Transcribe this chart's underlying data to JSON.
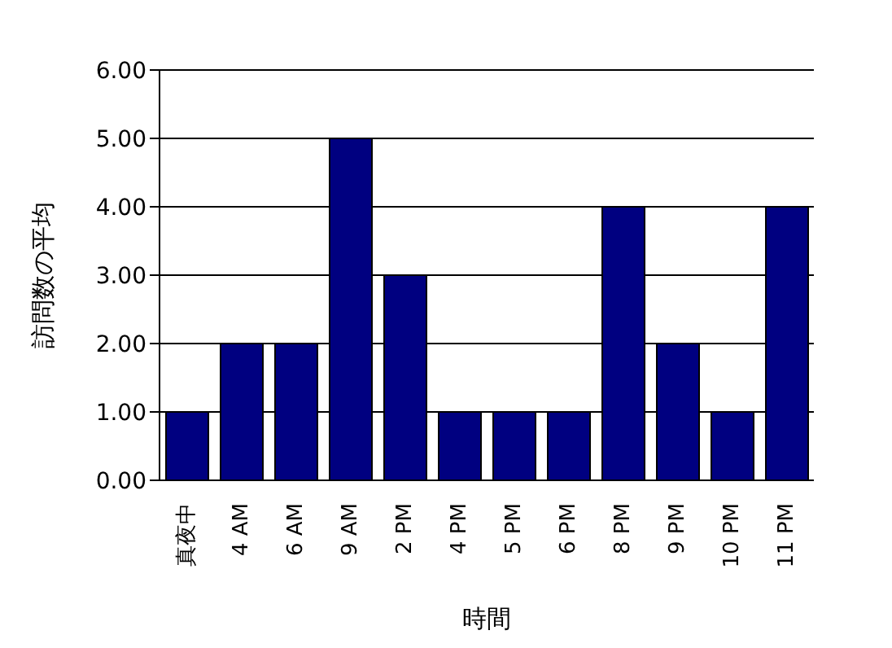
{
  "chart_data": {
    "type": "bar",
    "xlabel": "時間",
    "ylabel": "訪問数の平均",
    "categories": [
      "真夜中",
      "4 AM",
      "6 AM",
      "9 AM",
      "2 PM",
      "4 PM",
      "5 PM",
      "6 PM",
      "8 PM",
      "9 PM",
      "10 PM",
      "11 PM"
    ],
    "values": [
      1,
      2,
      2,
      5,
      3,
      1,
      1,
      1,
      4,
      2,
      1,
      4
    ],
    "color": "#000080",
    "ylim": [
      0,
      6
    ],
    "yticks": [
      {
        "value": 0,
        "label": "0.00"
      },
      {
        "value": 1,
        "label": "1.00"
      },
      {
        "value": 2,
        "label": "2.00"
      },
      {
        "value": 3,
        "label": "3.00"
      },
      {
        "value": 4,
        "label": "4.00"
      },
      {
        "value": 5,
        "label": "5.00"
      },
      {
        "value": 6,
        "label": "6.00"
      }
    ],
    "grid": "y"
  }
}
